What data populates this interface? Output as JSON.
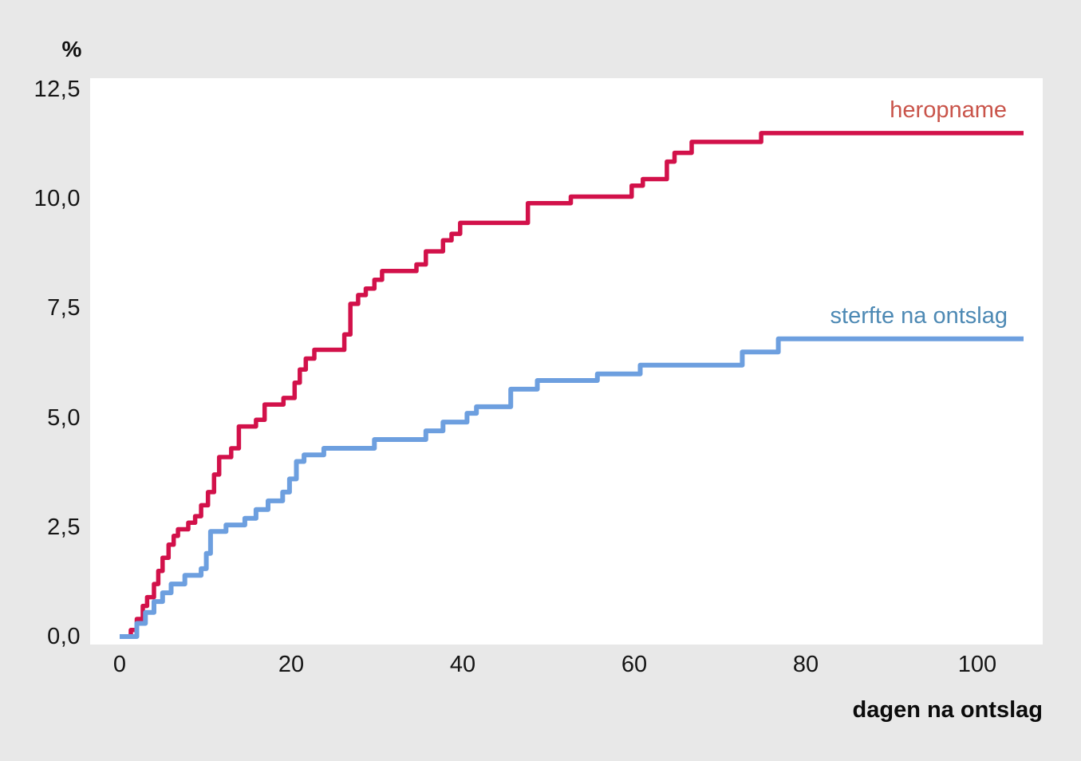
{
  "chart_data": {
    "type": "line",
    "subtype": "step-cumulative-incidence",
    "title": "",
    "ylabel": "%",
    "xlabel": "dagen na ontslag",
    "x_ticks": [
      "0",
      "20",
      "40",
      "60",
      "80",
      "100"
    ],
    "x_tick_values": [
      0,
      20,
      40,
      60,
      80,
      100
    ],
    "y_ticks": [
      "12,5",
      "10,0",
      "7,5",
      "5,0",
      "2,5",
      "0,0"
    ],
    "y_tick_values": [
      12.5,
      10.0,
      7.5,
      5.0,
      2.5,
      0.0
    ],
    "xlim": [
      -3.4,
      107.6
    ],
    "ylim": [
      -0.2,
      12.8
    ],
    "grid": false,
    "legend_position": "labels-right-of-curves",
    "plot_background": "#ffffff",
    "page_background": "#e8e8e8",
    "series": [
      {
        "name": "heropname",
        "color": "#d2114a",
        "label_color": "#c9544a",
        "points": [
          [
            0.7,
            0
          ],
          [
            1.3,
            0.15
          ],
          [
            2,
            0.4
          ],
          [
            2.7,
            0.7
          ],
          [
            3.2,
            0.9
          ],
          [
            4,
            1.2
          ],
          [
            4.5,
            1.5
          ],
          [
            5,
            1.8
          ],
          [
            5.7,
            2.1
          ],
          [
            6.3,
            2.3
          ],
          [
            6.8,
            2.45
          ],
          [
            8,
            2.6
          ],
          [
            8.8,
            2.75
          ],
          [
            9.5,
            3.0
          ],
          [
            10.3,
            3.3
          ],
          [
            11,
            3.7
          ],
          [
            11.6,
            4.1
          ],
          [
            13,
            4.3
          ],
          [
            13.9,
            4.8
          ],
          [
            15.9,
            4.95
          ],
          [
            16.9,
            5.3
          ],
          [
            19.1,
            5.45
          ],
          [
            20.4,
            5.8
          ],
          [
            21,
            6.1
          ],
          [
            21.7,
            6.35
          ],
          [
            22.7,
            6.55
          ],
          [
            26.2,
            6.9
          ],
          [
            26.9,
            7.6
          ],
          [
            27.8,
            7.8
          ],
          [
            28.7,
            7.95
          ],
          [
            29.7,
            8.15
          ],
          [
            30.6,
            8.35
          ],
          [
            34.6,
            8.5
          ],
          [
            35.7,
            8.8
          ],
          [
            37.7,
            9.05
          ],
          [
            38.7,
            9.2
          ],
          [
            39.7,
            9.45
          ],
          [
            47.6,
            9.9
          ],
          [
            52.6,
            10.05
          ],
          [
            59.7,
            10.3
          ],
          [
            61,
            10.45
          ],
          [
            63.8,
            10.85
          ],
          [
            64.7,
            11.05
          ],
          [
            66.7,
            11.3
          ],
          [
            74.8,
            11.5
          ],
          [
            105.4,
            11.5
          ]
        ]
      },
      {
        "name": "sterfte na ontslag",
        "color": "#6d9fdf",
        "label_color": "#4d89b4",
        "points": [
          [
            0,
            0
          ],
          [
            2,
            0.3
          ],
          [
            3,
            0.55
          ],
          [
            4,
            0.8
          ],
          [
            5,
            1.0
          ],
          [
            6,
            1.2
          ],
          [
            7.6,
            1.4
          ],
          [
            9.5,
            1.55
          ],
          [
            10.1,
            1.9
          ],
          [
            10.6,
            2.4
          ],
          [
            12.4,
            2.55
          ],
          [
            14.6,
            2.7
          ],
          [
            15.9,
            2.9
          ],
          [
            17.3,
            3.1
          ],
          [
            19,
            3.3
          ],
          [
            19.8,
            3.6
          ],
          [
            20.6,
            4.0
          ],
          [
            21.5,
            4.15
          ],
          [
            23.8,
            4.3
          ],
          [
            29.7,
            4.5
          ],
          [
            35.7,
            4.7
          ],
          [
            37.7,
            4.9
          ],
          [
            40.5,
            5.1
          ],
          [
            41.6,
            5.25
          ],
          [
            45.6,
            5.65
          ],
          [
            48.7,
            5.85
          ],
          [
            55.7,
            6.0
          ],
          [
            60.7,
            6.2
          ],
          [
            72.6,
            6.5
          ],
          [
            76.8,
            6.8
          ],
          [
            105.4,
            6.8
          ]
        ]
      }
    ]
  }
}
